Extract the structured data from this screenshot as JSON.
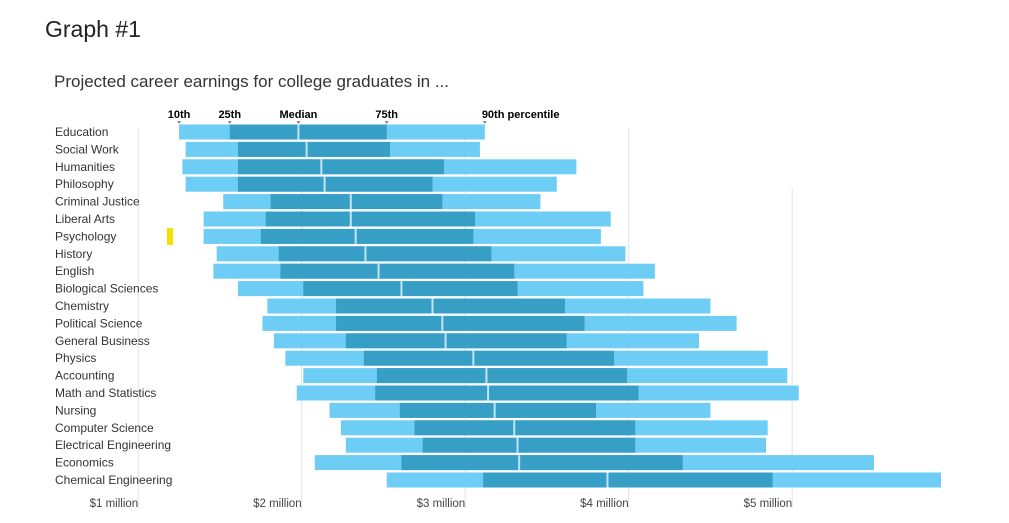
{
  "page": {
    "title": "Graph #1"
  },
  "chart_data": {
    "type": "bar",
    "subtype": "floating percentile bars",
    "title": "Projected career earnings for college graduates in ...",
    "percentile_labels": [
      "10th",
      "25th",
      "Median",
      "75th",
      "90th percentile"
    ],
    "x_ticks": [
      "$1 million",
      "$2 million",
      "$3 million",
      "$4 million",
      "$5 million"
    ],
    "x_tick_values": [
      1,
      2,
      3,
      4,
      5
    ],
    "xlim": [
      0.9,
      6.0
    ],
    "units": "$ million",
    "grid": true,
    "colors": {
      "outer": "#6dcdf5",
      "inner": "#379ec6",
      "highlight_marker": "#f5e000"
    },
    "highlighted_category": "Psychology",
    "categories": [
      "Education",
      "Social Work",
      "Humanities",
      "Philosophy",
      "Criminal Justice",
      "Liberal Arts",
      "Psychology",
      "History",
      "English",
      "Biological Sciences",
      "Chemistry",
      "Political Science",
      "General Business",
      "Physics",
      "Accounting",
      "Math and Statistics",
      "Nursing",
      "Computer Science",
      "Electrical Engineering",
      "Economics",
      "Chemical Engineering"
    ],
    "series": [
      {
        "name": "10th",
        "values": [
          1.25,
          1.29,
          1.27,
          1.29,
          1.52,
          1.4,
          1.4,
          1.48,
          1.46,
          1.61,
          1.79,
          1.76,
          1.83,
          1.9,
          2.01,
          1.97,
          2.17,
          2.24,
          2.27,
          2.08,
          2.52
        ]
      },
      {
        "name": "25th",
        "values": [
          1.56,
          1.61,
          1.61,
          1.61,
          1.81,
          1.78,
          1.75,
          1.86,
          1.87,
          2.01,
          2.21,
          2.21,
          2.27,
          2.38,
          2.46,
          2.45,
          2.6,
          2.69,
          2.74,
          2.61,
          3.11
        ]
      },
      {
        "name": "Median",
        "values": [
          1.98,
          2.03,
          2.12,
          2.14,
          2.3,
          2.3,
          2.33,
          2.39,
          2.47,
          2.61,
          2.8,
          2.86,
          2.88,
          3.05,
          3.13,
          3.14,
          3.18,
          3.3,
          3.32,
          3.33,
          3.87
        ]
      },
      {
        "name": "75th",
        "values": [
          2.52,
          2.54,
          2.87,
          2.8,
          2.86,
          3.06,
          3.05,
          3.16,
          3.3,
          3.32,
          3.61,
          3.73,
          3.62,
          3.91,
          3.99,
          4.06,
          3.8,
          4.04,
          4.04,
          4.33,
          4.88
        ]
      },
      {
        "name": "90th percentile",
        "values": [
          3.12,
          3.09,
          3.68,
          3.56,
          3.46,
          3.89,
          3.83,
          3.98,
          4.16,
          4.09,
          4.5,
          4.66,
          4.43,
          4.85,
          4.97,
          5.04,
          4.5,
          4.85,
          4.84,
          5.5,
          5.91
        ]
      }
    ]
  }
}
